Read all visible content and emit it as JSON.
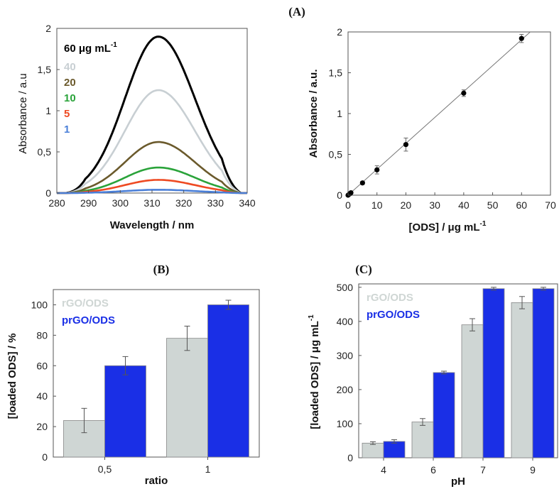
{
  "panel_labels": {
    "a": "(A)",
    "b": "(B)",
    "c": "(C)"
  },
  "colors": {
    "c60": "#000000",
    "c40": "#c8cfd3",
    "c20": "#6b5a2c",
    "c10": "#2aa33a",
    "c5": "#ee4a22",
    "c1": "#4a7fd8",
    "rgo": "#cfd6d4",
    "prgo": "#1a2fe6"
  },
  "chart_data": [
    {
      "type": "line",
      "id": "spectra",
      "xlabel": "Wavelength / nm",
      "ylabel": "Absorbance / a.u",
      "xlim": [
        280,
        340
      ],
      "ylim": [
        0,
        2
      ],
      "xticks": [
        280,
        290,
        300,
        310,
        320,
        330,
        340
      ],
      "yticks": [
        0,
        0.5,
        1,
        1.5,
        2
      ],
      "xtick_labels": [
        "280",
        "290",
        "300",
        "310",
        "320",
        "330",
        "340"
      ],
      "ytick_labels": [
        "0",
        "0,5",
        "1",
        "1,5",
        "2"
      ],
      "legend_position": "top-left",
      "series": [
        {
          "name": "60 μg mL",
          "name_sup": "-1",
          "peak": 1.9,
          "color": "#000000"
        },
        {
          "name": "40",
          "peak": 1.25,
          "color": "#c8cfd3"
        },
        {
          "name": "20",
          "peak": 0.62,
          "color": "#6b5a2c"
        },
        {
          "name": "10",
          "peak": 0.31,
          "color": "#2aa33a"
        },
        {
          "name": "5",
          "peak": 0.16,
          "color": "#ee4a22"
        },
        {
          "name": "1",
          "peak": 0.04,
          "color": "#4a7fd8"
        }
      ],
      "peak_wavelength": 312
    },
    {
      "type": "scatter",
      "id": "calibration",
      "xlabel": "[ODS] / μg mL",
      "xlabel_sup": "-1",
      "ylabel": "Absorbance / a.u.",
      "xlim": [
        0,
        70
      ],
      "ylim": [
        0,
        2
      ],
      "xticks": [
        0,
        10,
        20,
        30,
        40,
        50,
        60,
        70
      ],
      "yticks": [
        0,
        0.5,
        1,
        1.5,
        2
      ],
      "xtick_labels": [
        "0",
        "10",
        "20",
        "30",
        "40",
        "50",
        "60",
        "70"
      ],
      "ytick_labels": [
        "0",
        "0,5",
        "1",
        "1,5",
        "2"
      ],
      "x": [
        0,
        0.5,
        1,
        5,
        10,
        20,
        40,
        60
      ],
      "y": [
        0.0,
        0.015,
        0.03,
        0.15,
        0.31,
        0.62,
        1.25,
        1.92
      ],
      "yerr": [
        0,
        0,
        0,
        0.02,
        0.05,
        0.08,
        0.04,
        0.05
      ],
      "fit": {
        "x": [
          0,
          63
        ],
        "y": [
          0,
          2.0
        ]
      }
    },
    {
      "type": "bar",
      "id": "ratio",
      "xlabel": "ratio",
      "ylabel": "[loaded ODS] / %",
      "categories": [
        "0,5",
        "1"
      ],
      "ylim": [
        0,
        110
      ],
      "yticks": [
        0,
        20,
        40,
        60,
        80,
        100
      ],
      "ytick_labels": [
        "0",
        "20",
        "40",
        "60",
        "80",
        "100"
      ],
      "legend_position": "top-left",
      "series": [
        {
          "name": "rGO/ODS",
          "values": [
            24,
            78
          ],
          "errors": [
            8,
            8
          ],
          "color": "#cfd6d4"
        },
        {
          "name": "prGO/ODS",
          "values": [
            60,
            100
          ],
          "errors": [
            6,
            3
          ],
          "color": "#1a2fe6"
        }
      ]
    },
    {
      "type": "bar",
      "id": "ph",
      "xlabel": "pH",
      "ylabel": "[loaded ODS] / μg mL",
      "ylabel_sup": "-1",
      "categories": [
        "4",
        "6",
        "7",
        "9"
      ],
      "ylim": [
        0,
        510
      ],
      "yticks": [
        0,
        100,
        200,
        300,
        400,
        500
      ],
      "ytick_labels": [
        "0",
        "100",
        "200",
        "300",
        "400",
        "500"
      ],
      "legend_position": "top-left",
      "series": [
        {
          "name": "rGO/ODS",
          "values": [
            43,
            105,
            390,
            455
          ],
          "errors": [
            4,
            10,
            18,
            18
          ],
          "color": "#cfd6d4"
        },
        {
          "name": "prGO/ODS",
          "values": [
            48,
            250,
            496,
            496
          ],
          "errors": [
            5,
            4,
            4,
            4
          ],
          "color": "#1a2fe6"
        }
      ]
    }
  ]
}
